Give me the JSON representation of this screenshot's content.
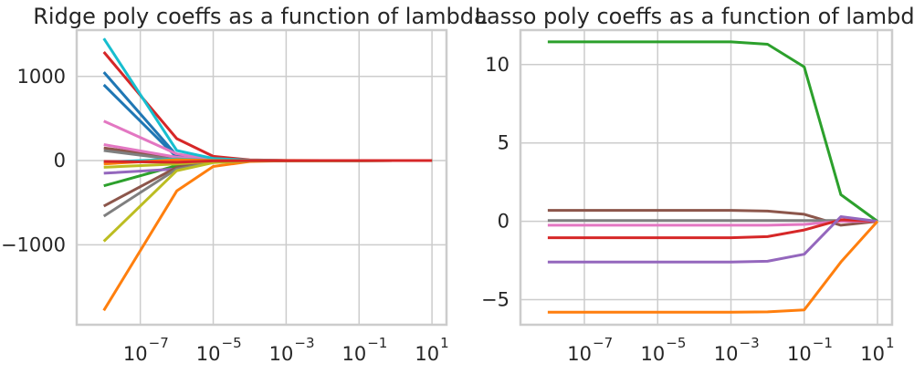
{
  "chart_data": [
    {
      "type": "line",
      "title": "Ridge poly coeffs as a function of lambda",
      "xlabel": "",
      "ylabel": "",
      "xscale": "log",
      "x": [
        1e-08,
        1e-06,
        1e-05,
        0.0001,
        0.001,
        0.01,
        0.1,
        1,
        10
      ],
      "xlim": [
        1.8e-09,
        25
      ],
      "ylim": [
        -1950,
        1550
      ],
      "xticks": [
        1e-07,
        1e-05,
        0.001,
        0.1,
        10
      ],
      "xtick_base": "10",
      "xtick_exponents": [
        "−7",
        "−5",
        "−3",
        "−1",
        "1"
      ],
      "yticks": [
        -1000,
        0,
        1000
      ],
      "ytick_labels": [
        "−1000",
        "0",
        "1000"
      ],
      "grid": true,
      "series": [
        {
          "color": "#1f77b4",
          "values": [
            1050,
            60,
            10,
            3,
            1,
            0.3,
            0.1,
            0,
            0
          ]
        },
        {
          "color": "#1f77b4",
          "values": [
            900,
            40,
            8,
            2,
            1,
            0.3,
            0.1,
            0,
            0
          ]
        },
        {
          "color": "#ff7f0e",
          "values": [
            -1780,
            -360,
            -70,
            -10,
            -2,
            -0.5,
            -0.1,
            0,
            0
          ]
        },
        {
          "color": "#2ca02c",
          "values": [
            -300,
            -60,
            -15,
            -3,
            -1,
            -0.3,
            -0.1,
            0,
            0
          ]
        },
        {
          "color": "#d62728",
          "values": [
            1290,
            260,
            50,
            8,
            2,
            0.5,
            0.1,
            0,
            0
          ]
        },
        {
          "color": "#9467bd",
          "values": [
            -150,
            -100,
            -20,
            -4,
            -1,
            -0.3,
            -0.1,
            0,
            0
          ]
        },
        {
          "color": "#8c564b",
          "values": [
            -540,
            -80,
            -15,
            -3,
            -1,
            -0.3,
            -0.1,
            0,
            0
          ]
        },
        {
          "color": "#8c564b",
          "values": [
            150,
            30,
            5,
            1,
            0.5,
            0.1,
            0,
            0,
            0
          ]
        },
        {
          "color": "#e377c2",
          "values": [
            470,
            80,
            15,
            3,
            1,
            0.3,
            0.1,
            0,
            0
          ]
        },
        {
          "color": "#e377c2",
          "values": [
            190,
            40,
            8,
            2,
            0.5,
            0.1,
            0,
            0,
            0
          ]
        },
        {
          "color": "#7f7f7f",
          "values": [
            -660,
            -100,
            -20,
            -4,
            -1,
            -0.3,
            -0.1,
            0,
            0
          ]
        },
        {
          "color": "#7f7f7f",
          "values": [
            120,
            10,
            2,
            0.5,
            0.1,
            0,
            0,
            0,
            0
          ]
        },
        {
          "color": "#bcbd22",
          "values": [
            -960,
            -120,
            -25,
            -5,
            -1,
            -0.3,
            -0.1,
            0,
            0
          ]
        },
        {
          "color": "#bcbd22",
          "values": [
            -80,
            -40,
            -8,
            -2,
            -0.5,
            -0.1,
            0,
            0,
            0
          ]
        },
        {
          "color": "#17becf",
          "values": [
            1450,
            120,
            25,
            5,
            1,
            0.3,
            0.1,
            0,
            0
          ]
        },
        {
          "color": "#17becf",
          "values": [
            -20,
            20,
            4,
            1,
            0.2,
            0,
            0,
            0,
            0
          ]
        },
        {
          "color": "#ff7f0e",
          "values": [
            -40,
            10,
            2,
            0.5,
            0.1,
            0,
            0,
            0,
            0
          ]
        },
        {
          "color": "#d62728",
          "values": [
            -10,
            -20,
            -4,
            -1,
            -0.2,
            0,
            0,
            0,
            0
          ]
        }
      ]
    },
    {
      "type": "line",
      "title": "Lasso poly coeffs as a function of lambda",
      "xlabel": "",
      "ylabel": "",
      "xscale": "log",
      "x": [
        1e-08,
        1e-06,
        1e-05,
        0.0001,
        0.001,
        0.01,
        0.1,
        1,
        10
      ],
      "xlim": [
        1.8e-09,
        25
      ],
      "ylim": [
        -6.6,
        12.2
      ],
      "xticks": [
        1e-07,
        1e-05,
        0.001,
        0.1,
        10
      ],
      "xtick_base": "10",
      "xtick_exponents": [
        "−7",
        "−5",
        "−3",
        "−1",
        "1"
      ],
      "yticks": [
        -5,
        0,
        5,
        10
      ],
      "ytick_labels": [
        "−5",
        "0",
        "5",
        "10"
      ],
      "grid": true,
      "series": [
        {
          "color": "#2ca02c",
          "values": [
            11.45,
            11.45,
            11.45,
            11.45,
            11.45,
            11.3,
            9.85,
            1.7,
            0
          ]
        },
        {
          "color": "#8c564b",
          "values": [
            0.7,
            0.7,
            0.7,
            0.7,
            0.7,
            0.65,
            0.45,
            -0.25,
            0
          ]
        },
        {
          "color": "#7f7f7f",
          "values": [
            0.05,
            0.05,
            0.05,
            0.05,
            0.05,
            0.05,
            0.05,
            0.05,
            0
          ]
        },
        {
          "color": "#e377c2",
          "values": [
            -0.25,
            -0.25,
            -0.25,
            -0.25,
            -0.25,
            -0.25,
            -0.2,
            0.0,
            0
          ]
        },
        {
          "color": "#d62728",
          "values": [
            -1.05,
            -1.05,
            -1.05,
            -1.05,
            -1.05,
            -0.98,
            -0.55,
            0.1,
            0
          ]
        },
        {
          "color": "#9467bd",
          "values": [
            -2.6,
            -2.6,
            -2.6,
            -2.6,
            -2.6,
            -2.55,
            -2.1,
            0.3,
            0
          ]
        },
        {
          "color": "#ff7f0e",
          "values": [
            -5.8,
            -5.8,
            -5.8,
            -5.8,
            -5.8,
            -5.78,
            -5.65,
            -2.6,
            0
          ]
        }
      ]
    }
  ]
}
